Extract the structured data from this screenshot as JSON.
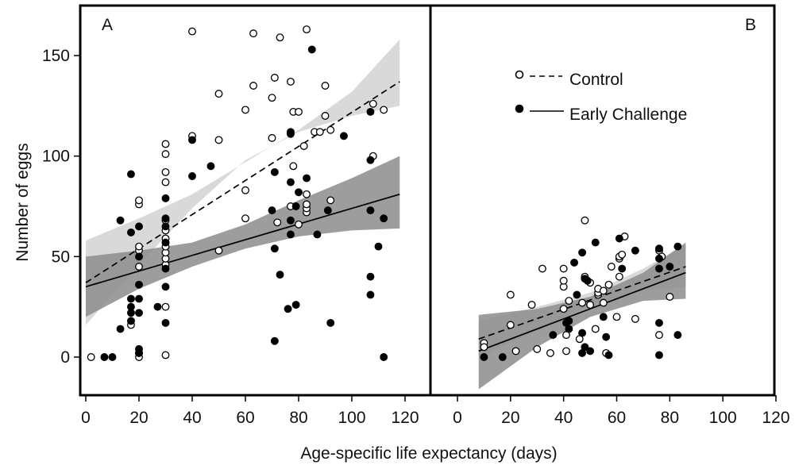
{
  "chart_data": {
    "type": "scatter",
    "xlabel": "Age-specific life expectancy (days)",
    "ylabel": "Number of eggs",
    "legend": {
      "placement": "top-right of panel B",
      "entries": [
        {
          "label": "Control",
          "marker": "open-circle",
          "line": "dashed"
        },
        {
          "label": "Early Challenge",
          "marker": "filled-circle",
          "line": "solid"
        }
      ]
    },
    "colors": {
      "control_band": "#d9d9d9",
      "challenge_band": "#8c8c8c",
      "overlap_band": "#7a7a7a",
      "marker": "#000000"
    },
    "panels": [
      {
        "label": "A",
        "xlim": [
          -2,
          130
        ],
        "ylim": [
          -20,
          175
        ],
        "xticks": [
          0,
          20,
          40,
          60,
          80,
          100,
          120
        ],
        "yticks": [
          0,
          50,
          100,
          150
        ],
        "series": [
          {
            "name": "Control",
            "fit": {
              "x": [
                0,
                118
              ],
              "y": [
                37,
                137
              ]
            },
            "band_lower": [
              [
                0,
                16
              ],
              [
                20,
                46
              ],
              [
                40,
                74
              ],
              [
                60,
                98
              ],
              [
                80,
                112
              ],
              [
                100,
                120
              ],
              [
                118,
                125
              ]
            ],
            "band_upper": [
              [
                0,
                58
              ],
              [
                20,
                69
              ],
              [
                40,
                81
              ],
              [
                60,
                97
              ],
              [
                80,
                113
              ],
              [
                100,
                132
              ],
              [
                118,
                158
              ]
            ],
            "points": [
              [
                2,
                0
              ],
              [
                17,
                16
              ],
              [
                20,
                0
              ],
              [
                20,
                2
              ],
              [
                20,
                53
              ],
              [
                20,
                55
              ],
              [
                20,
                76
              ],
              [
                20,
                78
              ],
              [
                20,
                45
              ],
              [
                30,
                1
              ],
              [
                30,
                25
              ],
              [
                30,
                46
              ],
              [
                30,
                49
              ],
              [
                30,
                52
              ],
              [
                30,
                55
              ],
              [
                30,
                57
              ],
              [
                30,
                59
              ],
              [
                30,
                63
              ],
              [
                30,
                68
              ],
              [
                30,
                87
              ],
              [
                30,
                92
              ],
              [
                30,
                101
              ],
              [
                30,
                106
              ],
              [
                40,
                110
              ],
              [
                40,
                162
              ],
              [
                50,
                53
              ],
              [
                50,
                108
              ],
              [
                50,
                131
              ],
              [
                60,
                69
              ],
              [
                60,
                83
              ],
              [
                60,
                123
              ],
              [
                63,
                161
              ],
              [
                63,
                135
              ],
              [
                70,
                109
              ],
              [
                70,
                129
              ],
              [
                71,
                139
              ],
              [
                72,
                67
              ],
              [
                73,
                159
              ],
              [
                77,
                75
              ],
              [
                77,
                137
              ],
              [
                78,
                122
              ],
              [
                78,
                95
              ],
              [
                80,
                66
              ],
              [
                80,
                122
              ],
              [
                82,
                105
              ],
              [
                83,
                72
              ],
              [
                83,
                74
              ],
              [
                83,
                76
              ],
              [
                83,
                81
              ],
              [
                83,
                163
              ],
              [
                86,
                112
              ],
              [
                88,
                112
              ],
              [
                90,
                120
              ],
              [
                90,
                135
              ],
              [
                92,
                113
              ],
              [
                92,
                78
              ],
              [
                108,
                100
              ],
              [
                108,
                126
              ],
              [
                112,
                123
              ]
            ]
          },
          {
            "name": "Early Challenge",
            "fit": {
              "x": [
                0,
                118
              ],
              "y": [
                35,
                81
              ]
            },
            "band_lower": [
              [
                0,
                20
              ],
              [
                20,
                34
              ],
              [
                40,
                45
              ],
              [
                60,
                54
              ],
              [
                80,
                60
              ],
              [
                100,
                63
              ],
              [
                118,
                64
              ]
            ],
            "band_upper": [
              [
                0,
                50
              ],
              [
                20,
                53
              ],
              [
                40,
                57
              ],
              [
                60,
                66
              ],
              [
                80,
                78
              ],
              [
                100,
                89
              ],
              [
                118,
                100
              ]
            ],
            "points": [
              [
                7,
                0
              ],
              [
                10,
                0
              ],
              [
                13,
                68
              ],
              [
                13,
                14
              ],
              [
                17,
                22
              ],
              [
                17,
                25
              ],
              [
                17,
                18
              ],
              [
                17,
                29
              ],
              [
                17,
                91
              ],
              [
                17,
                62
              ],
              [
                20,
                65
              ],
              [
                20,
                50
              ],
              [
                20,
                36
              ],
              [
                20,
                29
              ],
              [
                20,
                22
              ],
              [
                20,
                4
              ],
              [
                20,
                2
              ],
              [
                30,
                79
              ],
              [
                30,
                69
              ],
              [
                30,
                65
              ],
              [
                30,
                57
              ],
              [
                30,
                44
              ],
              [
                30,
                35
              ],
              [
                30,
                17
              ],
              [
                27,
                25
              ],
              [
                40,
                108
              ],
              [
                40,
                90
              ],
              [
                47,
                95
              ],
              [
                70,
                73
              ],
              [
                71,
                92
              ],
              [
                71,
                54
              ],
              [
                71,
                8
              ],
              [
                73,
                41
              ],
              [
                76,
                24
              ],
              [
                77,
                112
              ],
              [
                77,
                111
              ],
              [
                77,
                87
              ],
              [
                77,
                68
              ],
              [
                77,
                61
              ],
              [
                79,
                75
              ],
              [
                79,
                26
              ],
              [
                80,
                82
              ],
              [
                83,
                89
              ],
              [
                85,
                153
              ],
              [
                87,
                61
              ],
              [
                91,
                73
              ],
              [
                92,
                17
              ],
              [
                97,
                110
              ],
              [
                107,
                122
              ],
              [
                107,
                98
              ],
              [
                107,
                73
              ],
              [
                107,
                40
              ],
              [
                107,
                31
              ],
              [
                110,
                55
              ],
              [
                112,
                69
              ],
              [
                112,
                0
              ]
            ]
          }
        ]
      },
      {
        "label": "B",
        "xlim": [
          -8,
          125
        ],
        "ylim": [
          -20,
          175
        ],
        "xticks": [
          0,
          20,
          40,
          60,
          80,
          100,
          120
        ],
        "yticks": [
          0,
          50,
          100,
          150
        ],
        "series": [
          {
            "name": "Control",
            "fit": {
              "x": [
                8,
                86
              ],
              "y": [
                9,
                45
              ]
            },
            "band_lower": [
              [
                8,
                0
              ],
              [
                30,
                13
              ],
              [
                50,
                26
              ],
              [
                70,
                33
              ],
              [
                86,
                35
              ]
            ],
            "band_upper": [
              [
                8,
                18
              ],
              [
                30,
                25
              ],
              [
                50,
                32
              ],
              [
                70,
                44
              ],
              [
                86,
                56
              ]
            ],
            "points": [
              [
                10,
                7
              ],
              [
                10,
                5
              ],
              [
                20,
                16
              ],
              [
                20,
                31
              ],
              [
                22,
                3
              ],
              [
                28,
                26
              ],
              [
                30,
                4
              ],
              [
                32,
                44
              ],
              [
                35,
                2
              ],
              [
                40,
                24
              ],
              [
                40,
                35
              ],
              [
                40,
                38
              ],
              [
                40,
                44
              ],
              [
                41,
                11
              ],
              [
                41,
                3
              ],
              [
                42,
                28
              ],
              [
                46,
                9
              ],
              [
                47,
                27
              ],
              [
                48,
                40
              ],
              [
                48,
                68
              ],
              [
                50,
                26
              ],
              [
                50,
                37
              ],
              [
                52,
                14
              ],
              [
                53,
                31
              ],
              [
                53,
                32
              ],
              [
                53,
                34
              ],
              [
                55,
                27
              ],
              [
                55,
                33
              ],
              [
                56,
                2
              ],
              [
                57,
                36
              ],
              [
                58,
                45
              ],
              [
                60,
                20
              ],
              [
                61,
                40
              ],
              [
                61,
                49
              ],
              [
                61,
                50
              ],
              [
                62,
                51
              ],
              [
                63,
                60
              ],
              [
                67,
                19
              ],
              [
                76,
                11
              ],
              [
                76,
                53
              ],
              [
                77,
                50
              ],
              [
                80,
                30
              ]
            ]
          },
          {
            "name": "Early Challenge",
            "fit": {
              "x": [
                8,
                86
              ],
              "y": [
                3,
                42
              ]
            },
            "band_lower": [
              [
                8,
                -16
              ],
              [
                30,
                5
              ],
              [
                50,
                20
              ],
              [
                70,
                28
              ],
              [
                86,
                29
              ]
            ],
            "band_upper": [
              [
                8,
                21
              ],
              [
                30,
                24
              ],
              [
                50,
                30
              ],
              [
                70,
                42
              ],
              [
                86,
                57
              ]
            ],
            "points": [
              [
                10,
                0
              ],
              [
                17,
                0
              ],
              [
                36,
                11
              ],
              [
                41,
                17
              ],
              [
                42,
                18
              ],
              [
                42,
                14
              ],
              [
                44,
                47
              ],
              [
                45,
                31
              ],
              [
                47,
                52
              ],
              [
                47,
                12
              ],
              [
                47,
                2
              ],
              [
                48,
                5
              ],
              [
                48,
                39
              ],
              [
                49,
                38
              ],
              [
                50,
                3
              ],
              [
                52,
                57
              ],
              [
                55,
                20
              ],
              [
                56,
                10
              ],
              [
                57,
                1
              ],
              [
                61,
                59
              ],
              [
                62,
                44
              ],
              [
                67,
                53
              ],
              [
                76,
                1
              ],
              [
                76,
                17
              ],
              [
                76,
                44
              ],
              [
                76,
                49
              ],
              [
                76,
                54
              ],
              [
                80,
                45
              ],
              [
                83,
                55
              ],
              [
                83,
                11
              ]
            ]
          }
        ]
      }
    ]
  }
}
